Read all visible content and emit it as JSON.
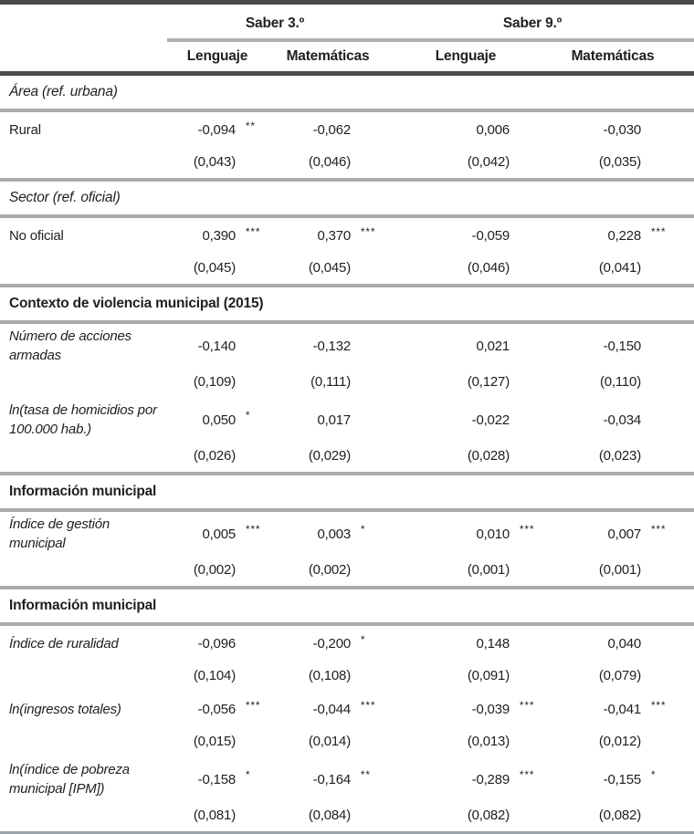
{
  "colors": {
    "rule_dark": "#4a4a4a",
    "rule_gray": "#a9abad",
    "rule_bottom": "#9aa4a8",
    "text": "#1f1f1f"
  },
  "table": {
    "groups": [
      "Saber 3.º",
      "Saber 9.º"
    ],
    "columns": [
      "Lenguaje",
      "Matemáticas",
      "Lenguaje",
      "Matemáticas"
    ],
    "rows": [
      {
        "type": "section-italic",
        "label": "Área (ref. urbana)"
      },
      {
        "type": "data",
        "label": "Rural",
        "values": [
          "-0,094",
          "-0,062",
          "0,006",
          "-0,030"
        ],
        "stars": [
          "**",
          "",
          "",
          ""
        ],
        "se": [
          "(0,043)",
          "(0,046)",
          "(0,042)",
          "(0,035)"
        ]
      },
      {
        "type": "section-italic",
        "label": "Sector (ref. oficial)"
      },
      {
        "type": "data",
        "label": "No oficial",
        "values": [
          "0,390",
          "0,370",
          "-0,059",
          "0,228"
        ],
        "stars": [
          "***",
          "***",
          "",
          "***"
        ],
        "se": [
          "(0,045)",
          "(0,045)",
          "(0,046)",
          "(0,041)"
        ]
      },
      {
        "type": "section-bold",
        "label": "Contexto de violencia municipal (2015)"
      },
      {
        "type": "data",
        "label": "Número de acciones armadas",
        "values": [
          "-0,140",
          "-0,132",
          "0,021",
          "-0,150"
        ],
        "stars": [
          "",
          "",
          "",
          ""
        ],
        "se": [
          "(0,109)",
          "(0,111)",
          "(0,127)",
          "(0,110)"
        ]
      },
      {
        "type": "data",
        "label": "ln(tasa de homicidios por 100.000 hab.)",
        "values": [
          "0,050",
          "0,017",
          "-0,022",
          "-0,034"
        ],
        "stars": [
          "*",
          "",
          "",
          ""
        ],
        "se": [
          "(0,026)",
          "(0,029)",
          "(0,028)",
          "(0,023)"
        ]
      },
      {
        "type": "section-bold",
        "label": "Información municipal"
      },
      {
        "type": "data",
        "label": "Índice de gestión municipal",
        "values": [
          "0,005",
          "0,003",
          "0,010",
          "0,007"
        ],
        "stars": [
          "***",
          "*",
          "***",
          "***"
        ],
        "se": [
          "(0,002)",
          "(0,002)",
          "(0,001)",
          "(0,001)"
        ]
      },
      {
        "type": "section-bold",
        "label": "Información municipal"
      },
      {
        "type": "data",
        "label": "Índice de ruralidad",
        "values": [
          "-0,096",
          "-0,200",
          "0,148",
          "0,040"
        ],
        "stars": [
          "",
          "*",
          "",
          ""
        ],
        "se": [
          "(0,104)",
          "(0,108)",
          "(0,091)",
          "(0,079)"
        ]
      },
      {
        "type": "data",
        "label": "ln(ingresos totales)",
        "values": [
          "-0,056",
          "-0,044",
          "-0,039",
          "-0,041"
        ],
        "stars": [
          "***",
          "***",
          "***",
          "***"
        ],
        "se": [
          "(0,015)",
          "(0,014)",
          "(0,013)",
          "(0,012)"
        ]
      },
      {
        "type": "data",
        "label": "ln(índice de pobreza municipal [IPM])",
        "values": [
          "-0,158",
          "-0,164",
          "-0,289",
          "-0,155"
        ],
        "stars": [
          "*",
          "**",
          "***",
          "*"
        ],
        "se": [
          "(0,081)",
          "(0,084)",
          "(0,082)",
          "(0,082)"
        ]
      }
    ]
  }
}
